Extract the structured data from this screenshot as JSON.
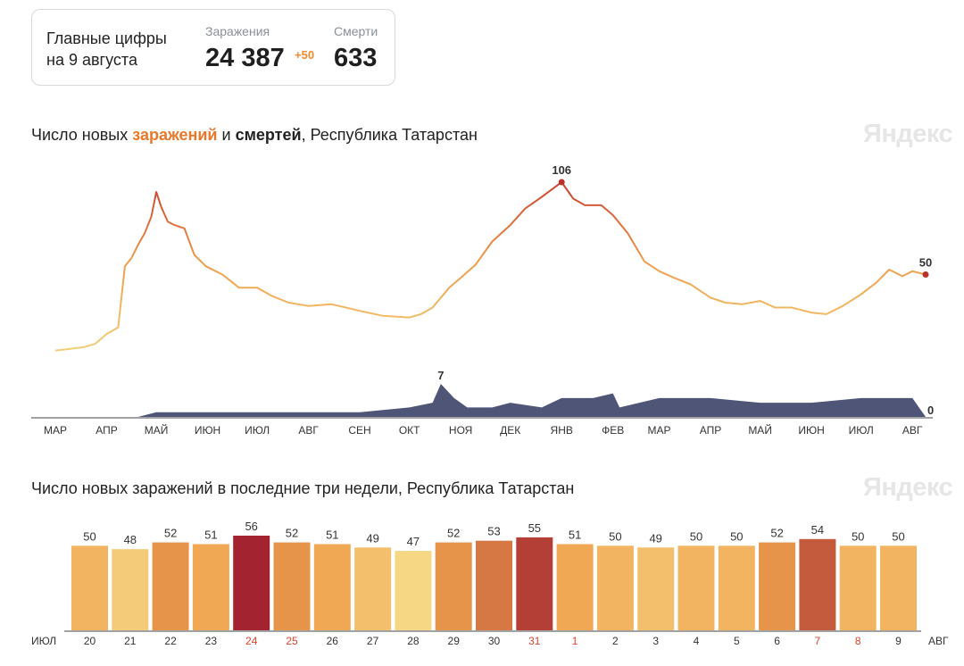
{
  "card": {
    "label_line1": "Главные цифры",
    "label_line2": "на 9 августа",
    "infections_caption": "Заражения",
    "infections_value": "24 387",
    "infections_delta": "+50",
    "deaths_caption": "Смерти",
    "deaths_value": "633"
  },
  "brand": "Яндекс",
  "chart1_title": {
    "part1": "Число новых ",
    "part2": "заражений",
    "part3": " и ",
    "part4": "смертей",
    "part5": ", Республика Татарстан"
  },
  "chart2_title": "Число новых заражений в последние три недели, Республика Татарстан",
  "colors": {
    "infections_low": "#f3d27a",
    "infections_mid": "#ef9a49",
    "infections_high": "#c73a2c",
    "deaths_fill": "#4f5577"
  },
  "chart_data": [
    {
      "type": "line",
      "series": [
        {
          "name": "заражений",
          "points": [
            [
              "2020-03-01",
              4
            ],
            [
              "2020-03-10",
              5
            ],
            [
              "2020-03-18",
              6
            ],
            [
              "2020-03-25",
              8
            ],
            [
              "2020-04-01",
              14
            ],
            [
              "2020-04-08",
              18
            ],
            [
              "2020-04-12",
              55
            ],
            [
              "2020-04-16",
              60
            ],
            [
              "2020-04-20",
              68
            ],
            [
              "2020-04-24",
              75
            ],
            [
              "2020-04-28",
              85
            ],
            [
              "2020-05-01",
              100
            ],
            [
              "2020-05-04",
              91
            ],
            [
              "2020-05-08",
              82
            ],
            [
              "2020-05-12",
              80
            ],
            [
              "2020-05-18",
              78
            ],
            [
              "2020-05-24",
              62
            ],
            [
              "2020-05-31",
              55
            ],
            [
              "2020-06-10",
              50
            ],
            [
              "2020-06-20",
              42
            ],
            [
              "2020-07-01",
              42
            ],
            [
              "2020-07-10",
              37
            ],
            [
              "2020-07-20",
              33
            ],
            [
              "2020-08-01",
              31
            ],
            [
              "2020-08-15",
              32
            ],
            [
              "2020-09-01",
              28
            ],
            [
              "2020-09-15",
              25
            ],
            [
              "2020-10-01",
              24
            ],
            [
              "2020-10-08",
              26
            ],
            [
              "2020-10-15",
              30
            ],
            [
              "2020-10-25",
              42
            ],
            [
              "2020-11-01",
              48
            ],
            [
              "2020-11-10",
              56
            ],
            [
              "2020-11-20",
              70
            ],
            [
              "2020-12-01",
              80
            ],
            [
              "2020-12-10",
              90
            ],
            [
              "2020-12-20",
              97
            ],
            [
              "2021-01-01",
              106
            ],
            [
              "2021-01-08",
              96
            ],
            [
              "2021-01-15",
              92
            ],
            [
              "2021-01-25",
              92
            ],
            [
              "2021-02-01",
              86
            ],
            [
              "2021-02-10",
              75
            ],
            [
              "2021-02-20",
              58
            ],
            [
              "2021-03-01",
              52
            ],
            [
              "2021-03-10",
              48
            ],
            [
              "2021-03-20",
              44
            ],
            [
              "2021-04-01",
              36
            ],
            [
              "2021-04-10",
              33
            ],
            [
              "2021-04-20",
              32
            ],
            [
              "2021-05-01",
              34
            ],
            [
              "2021-05-10",
              30
            ],
            [
              "2021-05-20",
              30
            ],
            [
              "2021-06-01",
              27
            ],
            [
              "2021-06-10",
              26
            ],
            [
              "2021-06-20",
              31
            ],
            [
              "2021-07-01",
              38
            ],
            [
              "2021-07-10",
              45
            ],
            [
              "2021-07-18",
              53
            ],
            [
              "2021-07-26",
              49
            ],
            [
              "2021-08-01",
              52
            ],
            [
              "2021-08-09",
              50
            ]
          ],
          "labels": [
            {
              "x": "2021-01-01",
              "y": 106,
              "text": "106"
            },
            {
              "x": "2021-08-09",
              "y": 50,
              "text": "50"
            }
          ]
        },
        {
          "name": "смертей",
          "points": [
            [
              "2020-03-01",
              0
            ],
            [
              "2020-04-20",
              0
            ],
            [
              "2020-05-01",
              1
            ],
            [
              "2020-06-01",
              1
            ],
            [
              "2020-07-01",
              1
            ],
            [
              "2020-08-01",
              1
            ],
            [
              "2020-09-01",
              1
            ],
            [
              "2020-10-01",
              2
            ],
            [
              "2020-10-15",
              3
            ],
            [
              "2020-10-20",
              7
            ],
            [
              "2020-10-28",
              4
            ],
            [
              "2020-11-05",
              2
            ],
            [
              "2020-11-20",
              2
            ],
            [
              "2020-12-01",
              3
            ],
            [
              "2020-12-20",
              2
            ],
            [
              "2021-01-01",
              4
            ],
            [
              "2021-01-20",
              4
            ],
            [
              "2021-02-01",
              5
            ],
            [
              "2021-02-05",
              2
            ],
            [
              "2021-03-01",
              4
            ],
            [
              "2021-04-01",
              4
            ],
            [
              "2021-05-01",
              3
            ],
            [
              "2021-06-01",
              3
            ],
            [
              "2021-07-01",
              4
            ],
            [
              "2021-08-01",
              4
            ],
            [
              "2021-08-09",
              0
            ]
          ],
          "labels": [
            {
              "x": "2020-10-20",
              "y": 7,
              "text": "7"
            },
            {
              "x": "2021-08-09",
              "y": 0,
              "text": "0"
            }
          ]
        }
      ],
      "x_tick_labels": [
        "МАР",
        "АПР",
        "МАЙ",
        "ИЮН",
        "ИЮЛ",
        "АВГ",
        "СЕН",
        "ОКТ",
        "НОЯ",
        "ДЕК",
        "ЯНВ",
        "ФЕВ",
        "МАР",
        "АПР",
        "МАЙ",
        "ИЮН",
        "ИЮЛ",
        "АВГ"
      ],
      "x_ticks": [
        "2020-03-01",
        "2020-04-01",
        "2020-05-01",
        "2020-06-01",
        "2020-07-01",
        "2020-08-01",
        "2020-09-01",
        "2020-10-01",
        "2020-11-01",
        "2020-12-01",
        "2021-01-01",
        "2021-02-01",
        "2021-03-01",
        "2021-04-01",
        "2021-05-01",
        "2021-06-01",
        "2021-07-01",
        "2021-08-01"
      ],
      "x_range": [
        "2020-03-01",
        "2021-08-09"
      ],
      "ylim_infections": [
        0,
        106
      ],
      "ylim_deaths": [
        0,
        7
      ],
      "grid": false
    },
    {
      "type": "bar",
      "categories": [
        "20",
        "21",
        "22",
        "23",
        "24",
        "25",
        "26",
        "27",
        "28",
        "29",
        "30",
        "31",
        "1",
        "2",
        "3",
        "4",
        "5",
        "6",
        "7",
        "8",
        "9"
      ],
      "values": [
        50,
        48,
        52,
        51,
        56,
        52,
        51,
        49,
        47,
        52,
        53,
        55,
        51,
        50,
        49,
        50,
        50,
        52,
        54,
        50,
        50
      ],
      "month_start": "ИЮЛ",
      "month_end": "АВГ",
      "weekend_categories": [
        "24",
        "25",
        "31",
        "1",
        "7",
        "8"
      ],
      "weekend_color": "#e0432c",
      "ylim": [
        0,
        56
      ],
      "grid": false
    }
  ]
}
